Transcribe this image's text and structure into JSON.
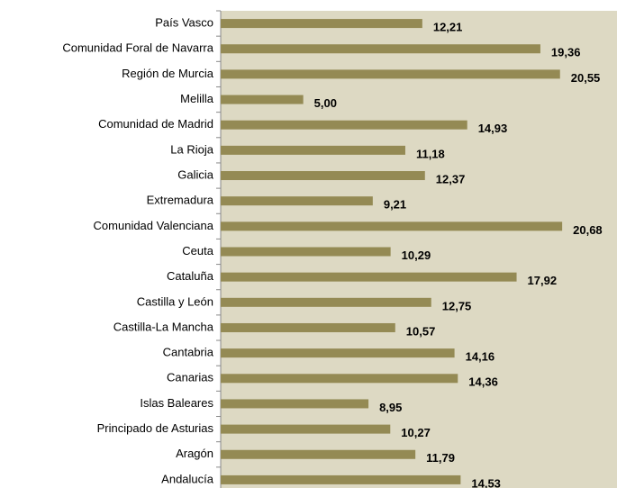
{
  "chart_data": {
    "type": "bar",
    "orientation": "horizontal",
    "categories": [
      "País Vasco",
      "Comunidad Foral de Navarra",
      "Región de Murcia",
      "Melilla",
      "Comunidad de Madrid",
      "La Rioja",
      "Galicia",
      "Extremadura",
      "Comunidad Valenciana",
      "Ceuta",
      "Cataluña",
      "Castilla y León",
      "Castilla-La Mancha",
      "Cantabria",
      "Canarias",
      "Islas Baleares",
      "Principado de Asturias",
      "Aragón",
      "Andalucía"
    ],
    "values": [
      12.21,
      19.36,
      20.55,
      5.0,
      14.93,
      11.18,
      12.37,
      9.21,
      20.68,
      10.29,
      17.92,
      12.75,
      10.57,
      14.16,
      14.36,
      8.95,
      10.27,
      11.79,
      14.53
    ],
    "value_labels": [
      "12,21",
      "19,36",
      "20,55",
      "5,00",
      "14,93",
      "11,18",
      "12,37",
      "9,21",
      "20,68",
      "10,29",
      "17,92",
      "12,75",
      "10,57",
      "14,16",
      "14,36",
      "8,95",
      "10,27",
      "11,79",
      "14,53"
    ],
    "color": "#948a54",
    "xlim": [
      0,
      24
    ]
  }
}
